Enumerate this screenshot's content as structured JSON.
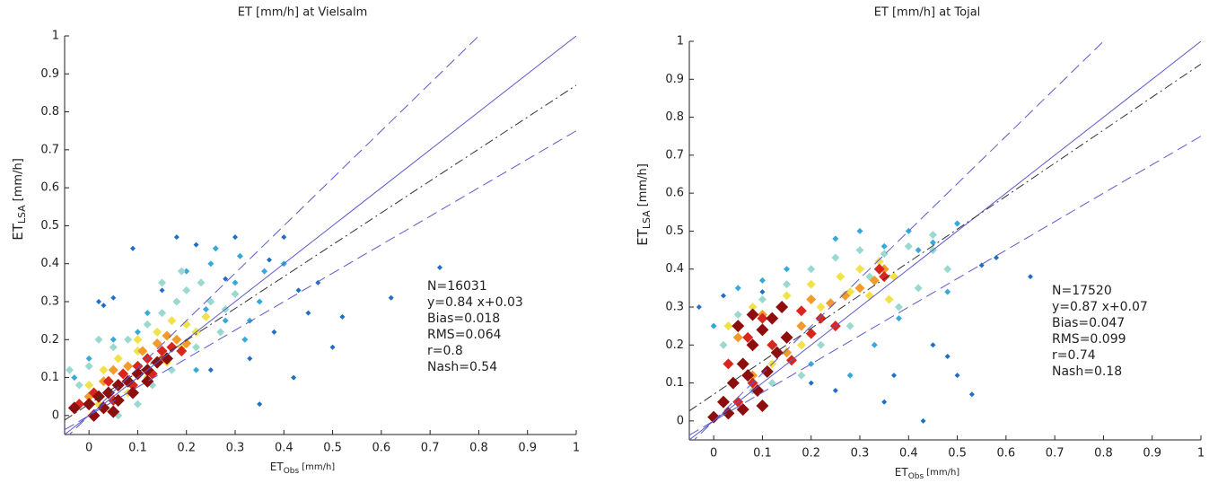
{
  "chart_data": [
    {
      "type": "scatter",
      "title": "ET [mm/h] at Vielsalm",
      "xlabel": "ET",
      "xlabel_sub": "Obs",
      "xlabel_unit": "[mm/h]",
      "ylabel": "ET",
      "ylabel_sub": "LSA",
      "ylabel_unit": "[mm/h]",
      "xlim": [
        -0.05,
        1
      ],
      "ylim": [
        -0.05,
        1
      ],
      "xticks": [
        0,
        0.1,
        0.2,
        0.3,
        0.4,
        0.5,
        0.6,
        0.7,
        0.8,
        0.9,
        1
      ],
      "yticks": [
        0,
        0.1,
        0.2,
        0.3,
        0.4,
        0.5,
        0.6,
        0.7,
        0.8,
        0.9,
        1
      ],
      "grid": false,
      "series": [
        {
          "color": "#1f6fc4",
          "x": [
            0.09,
            0.72,
            0.62,
            0.5,
            0.35,
            0.45,
            0.43,
            0.4,
            0.3,
            0.05,
            0.03,
            0.47,
            0.38,
            0.33,
            0.28,
            0.18,
            0.22,
            0.25,
            0.42,
            0.52,
            0.02,
            0.15,
            0.37
          ],
          "y": [
            0.44,
            0.39,
            0.31,
            0.18,
            0.03,
            0.27,
            0.33,
            0.47,
            0.47,
            0.31,
            0.29,
            0.35,
            0.22,
            0.15,
            0.36,
            0.47,
            0.45,
            0.12,
            0.1,
            0.26,
            0.3,
            0.33,
            0.41
          ]
        },
        {
          "color": "#36a9d9",
          "x": [
            0.25,
            0.3,
            0.2,
            0.35,
            0.28,
            0.15,
            0.22,
            0.32,
            0.4,
            0.12,
            0.18,
            0.26,
            0.31,
            0.36,
            0.1,
            0.05,
            0.0,
            -0.03,
            0.24,
            0.33
          ],
          "y": [
            0.4,
            0.35,
            0.38,
            0.3,
            0.25,
            0.15,
            0.12,
            0.2,
            0.4,
            0.27,
            0.3,
            0.44,
            0.42,
            0.38,
            0.22,
            0.2,
            0.15,
            0.1,
            0.28,
            0.25
          ]
        },
        {
          "color": "#9ad9d0",
          "x": [
            -0.04,
            -0.02,
            0.0,
            0.05,
            0.08,
            0.12,
            0.15,
            0.18,
            0.2,
            0.23,
            0.25,
            0.28,
            0.13,
            0.1,
            0.06,
            0.02,
            0.17,
            0.22,
            0.27,
            0.3,
            0.15,
            0.19
          ],
          "y": [
            0.12,
            0.08,
            0.13,
            0.18,
            0.2,
            0.24,
            0.27,
            0.3,
            0.33,
            0.35,
            0.3,
            0.28,
            0.08,
            0.03,
            0.0,
            0.2,
            0.12,
            0.18,
            0.22,
            0.32,
            0.35,
            0.38
          ]
        },
        {
          "color": "#f2e24a",
          "x": [
            0.0,
            0.03,
            0.06,
            0.1,
            0.14,
            0.17,
            0.2,
            0.22,
            0.12,
            0.08,
            0.16,
            0.19,
            0.24,
            0.02,
            0.1
          ],
          "y": [
            0.08,
            0.12,
            0.15,
            0.17,
            0.22,
            0.25,
            0.24,
            0.22,
            0.1,
            0.06,
            0.14,
            0.18,
            0.26,
            0.03,
            0.2
          ]
        },
        {
          "color": "#f39a2a",
          "x": [
            0.0,
            0.03,
            0.05,
            0.08,
            0.11,
            0.14,
            0.16,
            0.18,
            0.2,
            0.09,
            0.12,
            0.06,
            0.15
          ],
          "y": [
            0.05,
            0.09,
            0.12,
            0.13,
            0.17,
            0.19,
            0.21,
            0.2,
            0.19,
            0.08,
            0.12,
            0.04,
            0.15
          ]
        },
        {
          "color": "#d9261c",
          "x": [
            -0.02,
            0.01,
            0.04,
            0.07,
            0.1,
            0.12,
            0.15,
            0.17,
            0.19,
            0.05,
            0.09,
            0.13
          ],
          "y": [
            0.03,
            0.06,
            0.09,
            0.11,
            0.13,
            0.15,
            0.17,
            0.18,
            0.17,
            0.04,
            0.08,
            0.11
          ]
        },
        {
          "color": "#8e0e0e",
          "x": [
            -0.03,
            0.0,
            0.02,
            0.04,
            0.06,
            0.08,
            0.1,
            0.12,
            0.14,
            0.16,
            0.03,
            0.06,
            0.09,
            0.12,
            0.01,
            0.05
          ],
          "y": [
            0.02,
            0.03,
            0.05,
            0.06,
            0.08,
            0.09,
            0.11,
            0.12,
            0.14,
            0.15,
            0.02,
            0.04,
            0.06,
            0.09,
            0.0,
            0.01
          ]
        }
      ],
      "lines": [
        {
          "slope": 1,
          "intercept": 0,
          "style": "solid",
          "color": "#5a5ad0"
        },
        {
          "slope": 0.84,
          "intercept": 0.03,
          "style": "dashdot",
          "color": "#333333"
        },
        {
          "slope": 1.25,
          "intercept": 0,
          "style": "dash",
          "color": "#5a5ad0"
        },
        {
          "slope": 0.75,
          "intercept": 0,
          "style": "dash",
          "color": "#5a5ad0"
        }
      ],
      "annotations": [
        "N=16031",
        "y=0.84 x+0.03",
        "Bias=0.018",
        "RMS=0.064",
        "r=0.8",
        "Nash=0.54"
      ]
    },
    {
      "type": "scatter",
      "title": "ET [mm/h] at Tojal",
      "xlabel": "ET",
      "xlabel_sub": "Obs",
      "xlabel_unit": "[mm/h]",
      "ylabel": "ET",
      "ylabel_sub": "LSA",
      "ylabel_unit": "[mm/h]",
      "xlim": [
        -0.05,
        1
      ],
      "ylim": [
        -0.05,
        1
      ],
      "xticks": [
        0,
        0.1,
        0.2,
        0.3,
        0.4,
        0.5,
        0.6,
        0.7,
        0.8,
        0.9,
        1
      ],
      "yticks": [
        0,
        0.1,
        0.2,
        0.3,
        0.4,
        0.5,
        0.6,
        0.7,
        0.8,
        0.9,
        1
      ],
      "grid": false,
      "series": [
        {
          "color": "#1f6fc4",
          "x": [
            0.65,
            0.5,
            0.45,
            0.43,
            0.35,
            0.53,
            0.55,
            0.4,
            0.58,
            0.3,
            0.02,
            -0.03,
            0.1,
            0.48,
            0.37,
            0.25,
            0.2
          ],
          "y": [
            0.38,
            0.12,
            0.2,
            0.0,
            0.05,
            0.07,
            0.41,
            0.5,
            0.43,
            0.35,
            0.33,
            0.3,
            0.34,
            0.17,
            0.12,
            0.08,
            0.1
          ]
        },
        {
          "color": "#36a9d9",
          "x": [
            0.05,
            0.1,
            0.15,
            0.25,
            0.3,
            0.35,
            0.4,
            0.45,
            0.5,
            0.2,
            0.28,
            0.33,
            0.38,
            0.0,
            0.42,
            0.48
          ],
          "y": [
            0.35,
            0.37,
            0.4,
            0.48,
            0.5,
            0.46,
            0.5,
            0.47,
            0.52,
            0.15,
            0.12,
            0.2,
            0.27,
            0.25,
            0.45,
            0.34
          ]
        },
        {
          "color": "#9ad9d0",
          "x": [
            0.05,
            0.1,
            0.15,
            0.2,
            0.25,
            0.3,
            0.35,
            0.4,
            0.45,
            0.48,
            0.42,
            0.38,
            0.28,
            0.22,
            0.18,
            0.12,
            0.08,
            0.02,
            0.32,
            0.45
          ],
          "y": [
            0.28,
            0.32,
            0.36,
            0.4,
            0.43,
            0.45,
            0.44,
            0.46,
            0.45,
            0.4,
            0.35,
            0.3,
            0.25,
            0.2,
            0.12,
            0.1,
            0.08,
            0.2,
            0.38,
            0.49
          ]
        },
        {
          "color": "#f2e24a",
          "x": [
            0.03,
            0.08,
            0.15,
            0.2,
            0.26,
            0.3,
            0.34,
            0.37,
            0.32,
            0.22,
            0.18,
            0.12,
            0.28,
            0.36
          ],
          "y": [
            0.25,
            0.3,
            0.33,
            0.36,
            0.38,
            0.4,
            0.42,
            0.38,
            0.33,
            0.3,
            0.2,
            0.15,
            0.34,
            0.32
          ]
        },
        {
          "color": "#f39a2a",
          "x": [
            0.05,
            0.1,
            0.14,
            0.2,
            0.24,
            0.27,
            0.33,
            0.35,
            0.18,
            0.15,
            0.08,
            0.3
          ],
          "y": [
            0.22,
            0.28,
            0.3,
            0.32,
            0.31,
            0.33,
            0.37,
            0.4,
            0.25,
            0.18,
            0.12,
            0.35
          ]
        },
        {
          "color": "#d9261c",
          "x": [
            0.03,
            0.07,
            0.1,
            0.14,
            0.18,
            0.22,
            0.25,
            0.2,
            0.12,
            0.05,
            0.08,
            0.16,
            0.35,
            0.34
          ],
          "y": [
            0.15,
            0.22,
            0.27,
            0.3,
            0.29,
            0.27,
            0.25,
            0.23,
            0.2,
            0.05,
            0.1,
            0.16,
            0.38,
            0.4
          ]
        },
        {
          "color": "#8e0e0e",
          "x": [
            0.0,
            0.02,
            0.04,
            0.06,
            0.08,
            0.1,
            0.12,
            0.14,
            0.06,
            0.09,
            0.11,
            0.13,
            0.03,
            0.05,
            0.08,
            0.15,
            0.1,
            0.07
          ],
          "y": [
            0.01,
            0.05,
            0.1,
            0.15,
            0.2,
            0.24,
            0.27,
            0.3,
            0.03,
            0.08,
            0.13,
            0.18,
            0.02,
            0.25,
            0.28,
            0.22,
            0.04,
            0.12
          ]
        }
      ],
      "lines": [
        {
          "slope": 1,
          "intercept": 0,
          "style": "solid",
          "color": "#5a5ad0"
        },
        {
          "slope": 0.87,
          "intercept": 0.07,
          "style": "dashdot",
          "color": "#333333"
        },
        {
          "slope": 1.25,
          "intercept": 0,
          "style": "dash",
          "color": "#5a5ad0"
        },
        {
          "slope": 0.75,
          "intercept": 0,
          "style": "dash",
          "color": "#5a5ad0"
        }
      ],
      "annotations": [
        "N=17520",
        "y=0.87 x+0.07",
        "Bias=0.047",
        "RMS=0.099",
        "r=0.74",
        "Nash=0.18"
      ]
    }
  ]
}
